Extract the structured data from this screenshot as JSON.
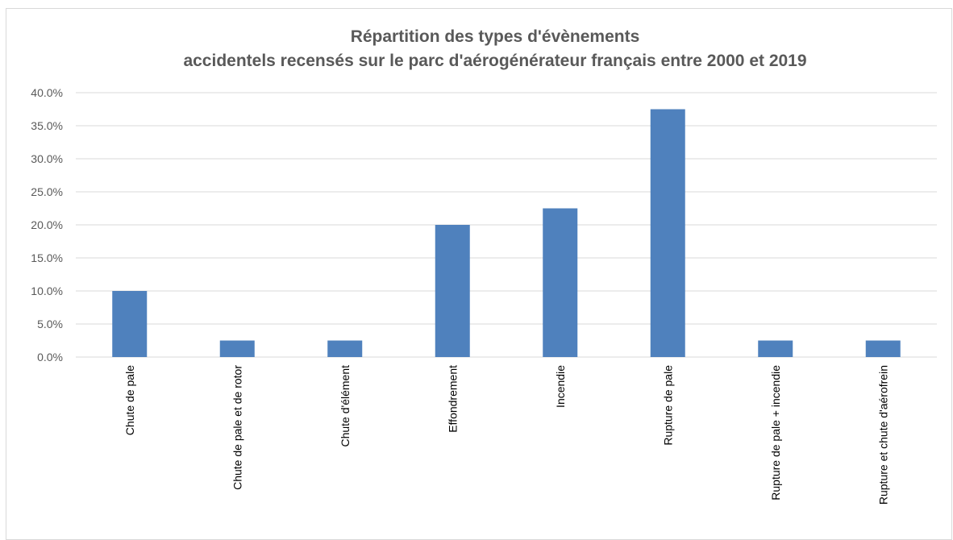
{
  "chart_data": {
    "type": "bar",
    "title_lines": [
      "Répartition des types d'évènements",
      "accidentels recensés sur le parc d'aérogénérateur français entre 2000 et 2019"
    ],
    "categories": [
      "Chute de pale",
      "Chute de pale et de rotor",
      "Chute d'élément",
      "Effondrement",
      "Incendie",
      "Rupture de pale",
      "Rupture de pale + incendie",
      "Rupture et chute d'aérofrein"
    ],
    "values": [
      0.1,
      0.025,
      0.025,
      0.2,
      0.225,
      0.375,
      0.025,
      0.025
    ],
    "ylim": [
      0,
      0.4
    ],
    "y_ticks": [
      0,
      0.05,
      0.1,
      0.15,
      0.2,
      0.25,
      0.3,
      0.35,
      0.4
    ],
    "y_tick_labels": [
      "0.0%",
      "5.0%",
      "10.0%",
      "15.0%",
      "20.0%",
      "25.0%",
      "30.0%",
      "35.0%",
      "40.0%"
    ],
    "xlabel": "",
    "ylabel": "",
    "grid": true,
    "legend": "none",
    "bar_color": "#4f81bd"
  }
}
